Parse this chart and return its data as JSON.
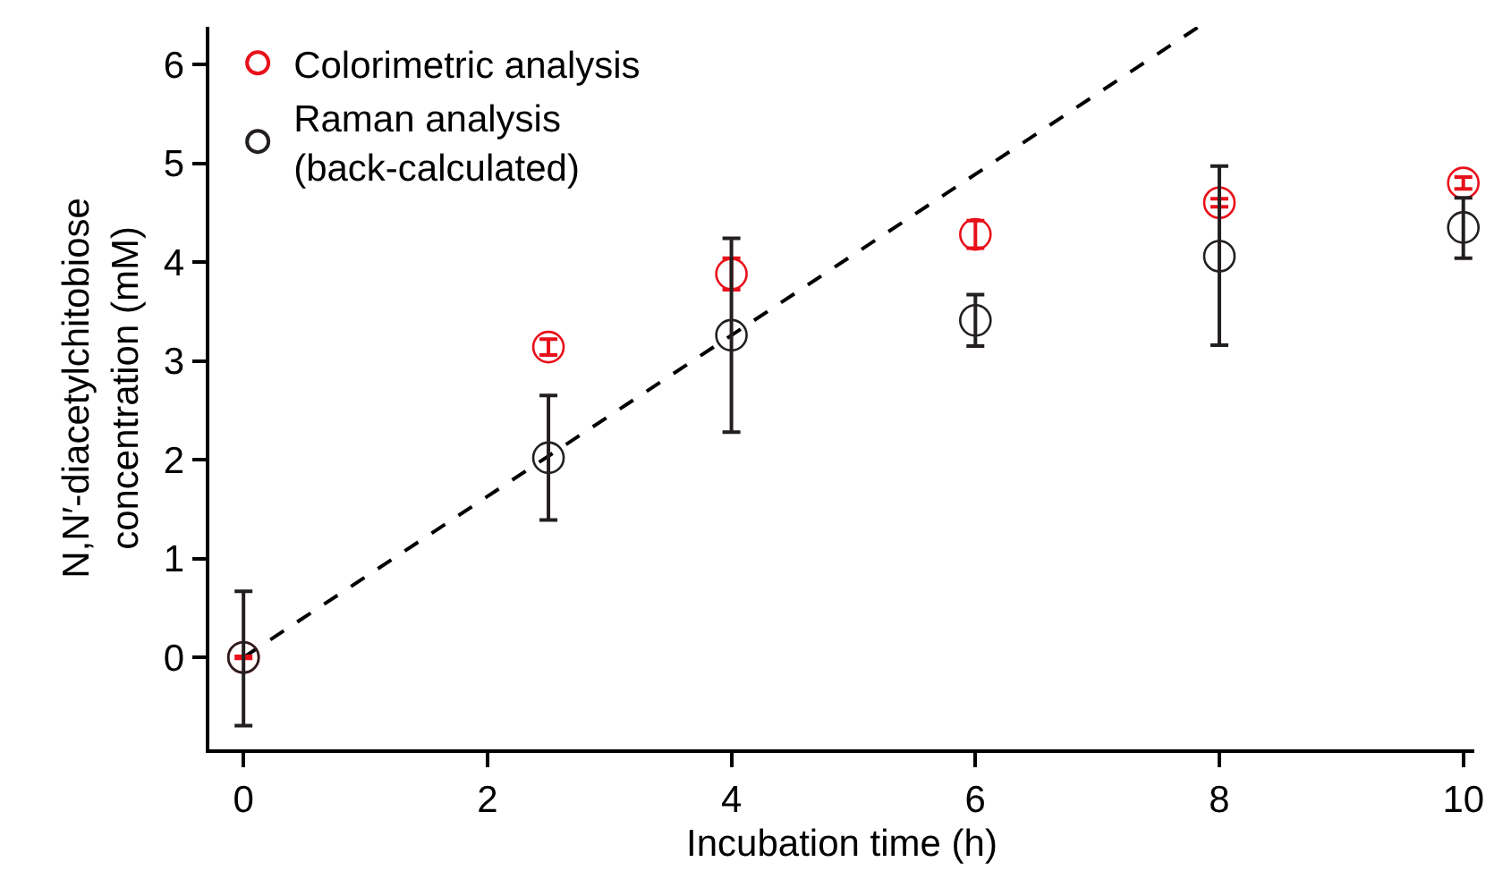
{
  "chart_data": {
    "type": "scatter",
    "xlabel": "Incubation time (h)",
    "ylabel": "N,N′-diacetylchitobiose\nconcentration (mM)",
    "x": [
      0,
      2.5,
      4,
      6,
      8,
      10
    ],
    "series": [
      {
        "name": "Colorimetric analysis",
        "color": "#e8101a",
        "values": [
          0,
          3.14,
          3.88,
          4.28,
          4.6,
          4.8
        ],
        "errors": [
          0.01,
          0.08,
          0.16,
          0.14,
          0.04,
          0.06
        ]
      },
      {
        "name": "Raman analysis\n(back-calculated)",
        "color": "#231f20",
        "values": [
          0,
          2.02,
          3.26,
          3.41,
          4.06,
          4.35
        ],
        "errors": [
          [
            -0.69,
            0.67
          ],
          [
            1.39,
            2.65
          ],
          [
            2.28,
            4.24
          ],
          [
            3.15,
            3.67
          ],
          [
            3.16,
            4.97
          ],
          [
            4.04,
            4.65
          ]
        ]
      },
      {
        "type": "line",
        "color": "#000000",
        "line_style": "dashed",
        "marker": "none",
        "x": [
          0,
          7.83
        ],
        "values": [
          0,
          6.38
        ]
      }
    ],
    "xlim": [
      -0.28,
      10.09
    ],
    "xticks": [
      0,
      2,
      4,
      6,
      8,
      10
    ],
    "ylim": [
      -0.93,
      6.38
    ],
    "yticks": [
      0,
      1,
      2,
      3,
      4,
      5,
      6
    ],
    "grid": false,
    "legend": "top left",
    "marker": "circle"
  }
}
